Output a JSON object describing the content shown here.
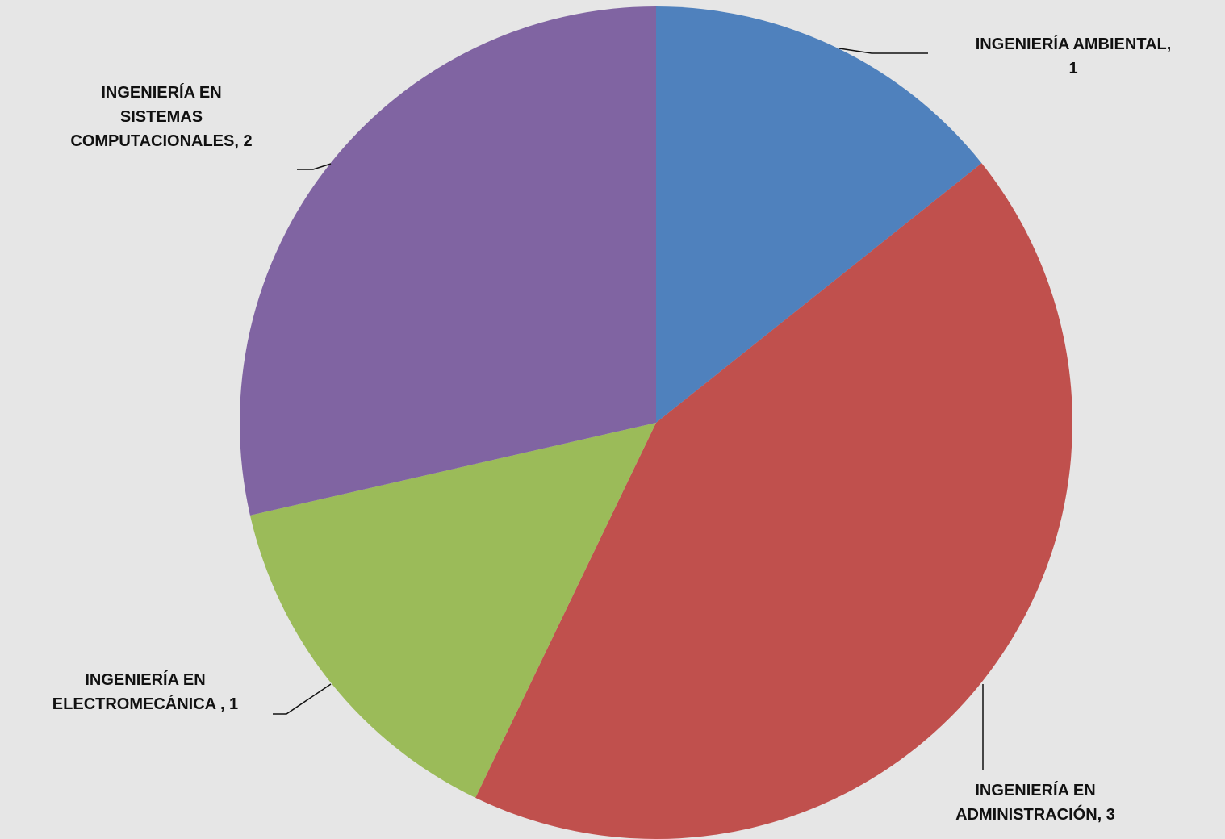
{
  "chart_data": {
    "type": "pie",
    "values": [
      1,
      3,
      1,
      2
    ],
    "value_labels": [
      "INGENIERÍA AMBIENTAL,\n1",
      "INGENIERÍA EN\nADMINISTRACIÓN, 3",
      "INGENIERÍA EN\nELECTROMECÁNICA , 1",
      "INGENIERÍA EN\nSISTEMAS\nCOMPUTACIONALES, 2"
    ],
    "colors": [
      "#4f81bd",
      "#c0504d",
      "#9bbb59",
      "#8064a2"
    ]
  }
}
